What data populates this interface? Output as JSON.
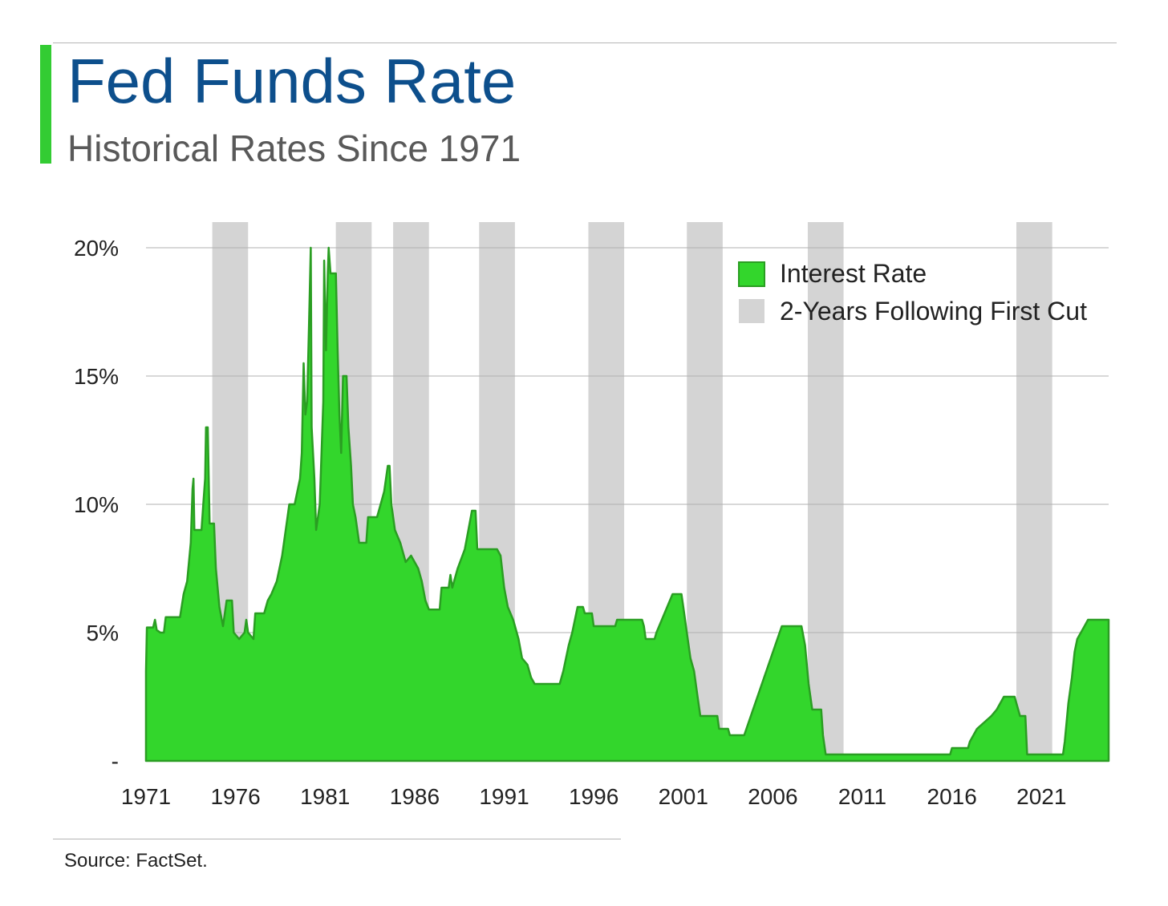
{
  "header": {
    "title": "Fed Funds Rate",
    "subtitle": "Historical Rates Since 1971",
    "accent_color": "#33cc33",
    "title_color": "#0d4f8c"
  },
  "footer": {
    "source": "Source: FactSet."
  },
  "chart_data": {
    "type": "area",
    "title": "Fed Funds Rate",
    "subtitle": "Historical Rates Since 1971",
    "xlabel": "",
    "ylabel": "",
    "xlim": [
      1971,
      2024.75
    ],
    "ylim": [
      0,
      20
    ],
    "grid": true,
    "legend_position": "top-right",
    "x_ticks": [
      {
        "value": 1971,
        "label": "1971"
      },
      {
        "value": 1976,
        "label": "1976"
      },
      {
        "value": 1981,
        "label": "1981"
      },
      {
        "value": 1986,
        "label": "1986"
      },
      {
        "value": 1991,
        "label": "1991"
      },
      {
        "value": 1996,
        "label": "1996"
      },
      {
        "value": 2001,
        "label": "2001"
      },
      {
        "value": 2006,
        "label": "2006"
      },
      {
        "value": 2011,
        "label": "2011"
      },
      {
        "value": 2016,
        "label": "2016"
      },
      {
        "value": 2021,
        "label": "2021"
      }
    ],
    "y_ticks": [
      {
        "value": 0,
        "label": "-"
      },
      {
        "value": 5,
        "label": "5%"
      },
      {
        "value": 10,
        "label": "10%"
      },
      {
        "value": 15,
        "label": "15%"
      },
      {
        "value": 20,
        "label": "20%"
      }
    ],
    "series": [
      {
        "name": "Interest Rate",
        "color": "#33d62c",
        "line_color": "#2a9e22",
        "points": [
          [
            1971.0,
            3.5
          ],
          [
            1971.05,
            5.2
          ],
          [
            1971.4,
            5.2
          ],
          [
            1971.5,
            5.5
          ],
          [
            1971.6,
            5.1
          ],
          [
            1971.8,
            5.0
          ],
          [
            1972.0,
            5.0
          ],
          [
            1972.1,
            5.6
          ],
          [
            1972.9,
            5.6
          ],
          [
            1973.1,
            6.5
          ],
          [
            1973.3,
            7.0
          ],
          [
            1973.5,
            8.5
          ],
          [
            1973.6,
            10.6
          ],
          [
            1973.65,
            11.0
          ],
          [
            1973.7,
            9.0
          ],
          [
            1974.1,
            9.0
          ],
          [
            1974.2,
            10.0
          ],
          [
            1974.3,
            11.0
          ],
          [
            1974.35,
            13.0
          ],
          [
            1974.45,
            13.0
          ],
          [
            1974.55,
            9.25
          ],
          [
            1974.8,
            9.25
          ],
          [
            1974.9,
            7.5
          ],
          [
            1975.1,
            6.0
          ],
          [
            1975.3,
            5.25
          ],
          [
            1975.5,
            6.25
          ],
          [
            1975.8,
            6.25
          ],
          [
            1975.9,
            5.0
          ],
          [
            1976.2,
            4.75
          ],
          [
            1976.5,
            5.0
          ],
          [
            1976.6,
            5.5
          ],
          [
            1976.7,
            5.0
          ],
          [
            1977.0,
            4.75
          ],
          [
            1977.1,
            5.75
          ],
          [
            1977.6,
            5.75
          ],
          [
            1977.8,
            6.25
          ],
          [
            1978.0,
            6.5
          ],
          [
            1978.3,
            7.0
          ],
          [
            1978.6,
            8.0
          ],
          [
            1978.9,
            9.5
          ],
          [
            1979.0,
            10.0
          ],
          [
            1979.3,
            10.0
          ],
          [
            1979.6,
            11.0
          ],
          [
            1979.7,
            12.0
          ],
          [
            1979.8,
            15.5
          ],
          [
            1979.9,
            13.5
          ],
          [
            1980.0,
            14.0
          ],
          [
            1980.1,
            17.0
          ],
          [
            1980.2,
            20.0
          ],
          [
            1980.25,
            13.0
          ],
          [
            1980.4,
            11.0
          ],
          [
            1980.5,
            9.0
          ],
          [
            1980.7,
            10.0
          ],
          [
            1980.9,
            14.0
          ],
          [
            1980.95,
            19.5
          ],
          [
            1981.05,
            16.0
          ],
          [
            1981.15,
            19.0
          ],
          [
            1981.2,
            20.0
          ],
          [
            1981.3,
            19.0
          ],
          [
            1981.6,
            19.0
          ],
          [
            1981.7,
            16.0
          ],
          [
            1981.8,
            13.5
          ],
          [
            1981.9,
            12.0
          ],
          [
            1982.0,
            15.0
          ],
          [
            1982.2,
            15.0
          ],
          [
            1982.3,
            13.0
          ],
          [
            1982.45,
            11.5
          ],
          [
            1982.55,
            10.0
          ],
          [
            1982.7,
            9.5
          ],
          [
            1982.9,
            8.5
          ],
          [
            1983.3,
            8.5
          ],
          [
            1983.4,
            9.5
          ],
          [
            1983.9,
            9.5
          ],
          [
            1984.1,
            10.0
          ],
          [
            1984.3,
            10.5
          ],
          [
            1984.5,
            11.5
          ],
          [
            1984.6,
            11.5
          ],
          [
            1984.7,
            10.0
          ],
          [
            1984.9,
            9.0
          ],
          [
            1985.2,
            8.5
          ],
          [
            1985.5,
            7.75
          ],
          [
            1985.8,
            8.0
          ],
          [
            1986.2,
            7.5
          ],
          [
            1986.4,
            7.0
          ],
          [
            1986.6,
            6.25
          ],
          [
            1986.8,
            5.9
          ],
          [
            1987.4,
            5.9
          ],
          [
            1987.5,
            6.75
          ],
          [
            1987.9,
            6.75
          ],
          [
            1988.0,
            7.25
          ],
          [
            1988.1,
            6.75
          ],
          [
            1988.4,
            7.5
          ],
          [
            1988.8,
            8.25
          ],
          [
            1989.0,
            9.0
          ],
          [
            1989.2,
            9.75
          ],
          [
            1989.4,
            9.75
          ],
          [
            1989.5,
            8.25
          ],
          [
            1990.6,
            8.25
          ],
          [
            1990.8,
            8.0
          ],
          [
            1991.0,
            6.75
          ],
          [
            1991.2,
            6.0
          ],
          [
            1991.5,
            5.5
          ],
          [
            1991.8,
            4.75
          ],
          [
            1992.0,
            4.0
          ],
          [
            1992.3,
            3.75
          ],
          [
            1992.5,
            3.25
          ],
          [
            1992.7,
            3.0
          ],
          [
            1994.1,
            3.0
          ],
          [
            1994.3,
            3.5
          ],
          [
            1994.6,
            4.5
          ],
          [
            1994.8,
            5.0
          ],
          [
            1995.1,
            6.0
          ],
          [
            1995.4,
            6.0
          ],
          [
            1995.5,
            5.75
          ],
          [
            1995.9,
            5.75
          ],
          [
            1996.0,
            5.25
          ],
          [
            1997.2,
            5.25
          ],
          [
            1997.3,
            5.5
          ],
          [
            1998.7,
            5.5
          ],
          [
            1998.8,
            5.25
          ],
          [
            1998.9,
            4.75
          ],
          [
            1999.4,
            4.75
          ],
          [
            1999.5,
            5.0
          ],
          [
            1999.8,
            5.5
          ],
          [
            2000.1,
            6.0
          ],
          [
            2000.4,
            6.5
          ],
          [
            2000.9,
            6.5
          ],
          [
            2001.0,
            6.0
          ],
          [
            2001.2,
            5.0
          ],
          [
            2001.4,
            4.0
          ],
          [
            2001.6,
            3.5
          ],
          [
            2001.8,
            2.5
          ],
          [
            2001.95,
            1.75
          ],
          [
            2002.9,
            1.75
          ],
          [
            2003.0,
            1.25
          ],
          [
            2003.5,
            1.25
          ],
          [
            2003.6,
            1.0
          ],
          [
            2004.4,
            1.0
          ],
          [
            2006.5,
            5.25
          ],
          [
            2007.6,
            5.25
          ],
          [
            2007.8,
            4.5
          ],
          [
            2008.0,
            3.0
          ],
          [
            2008.2,
            2.0
          ],
          [
            2008.7,
            2.0
          ],
          [
            2008.8,
            1.0
          ],
          [
            2008.95,
            0.25
          ],
          [
            2015.9,
            0.25
          ],
          [
            2016.0,
            0.5
          ],
          [
            2016.9,
            0.5
          ],
          [
            2017.0,
            0.75
          ],
          [
            2017.4,
            1.25
          ],
          [
            2018.2,
            1.75
          ],
          [
            2018.5,
            2.0
          ],
          [
            2018.9,
            2.5
          ],
          [
            2019.5,
            2.5
          ],
          [
            2019.6,
            2.25
          ],
          [
            2019.8,
            1.75
          ],
          [
            2020.1,
            1.75
          ],
          [
            2020.2,
            0.25
          ],
          [
            2022.2,
            0.25
          ],
          [
            2022.3,
            0.75
          ],
          [
            2022.5,
            2.25
          ],
          [
            2022.7,
            3.25
          ],
          [
            2022.85,
            4.25
          ],
          [
            2023.0,
            4.75
          ],
          [
            2023.2,
            5.0
          ],
          [
            2023.4,
            5.25
          ],
          [
            2023.6,
            5.5
          ],
          [
            2024.75,
            5.5
          ]
        ]
      }
    ],
    "shaded_periods": {
      "name": "2-Years Following First Cut",
      "color": "#d4d4d4",
      "ranges": [
        [
          1974.7,
          1976.7
        ],
        [
          1981.6,
          1983.6
        ],
        [
          1984.8,
          1986.8
        ],
        [
          1989.6,
          1991.6
        ],
        [
          1995.7,
          1997.7
        ],
        [
          2001.2,
          2003.2
        ],
        [
          2007.95,
          2009.95
        ],
        [
          2019.6,
          2021.6
        ]
      ]
    }
  }
}
